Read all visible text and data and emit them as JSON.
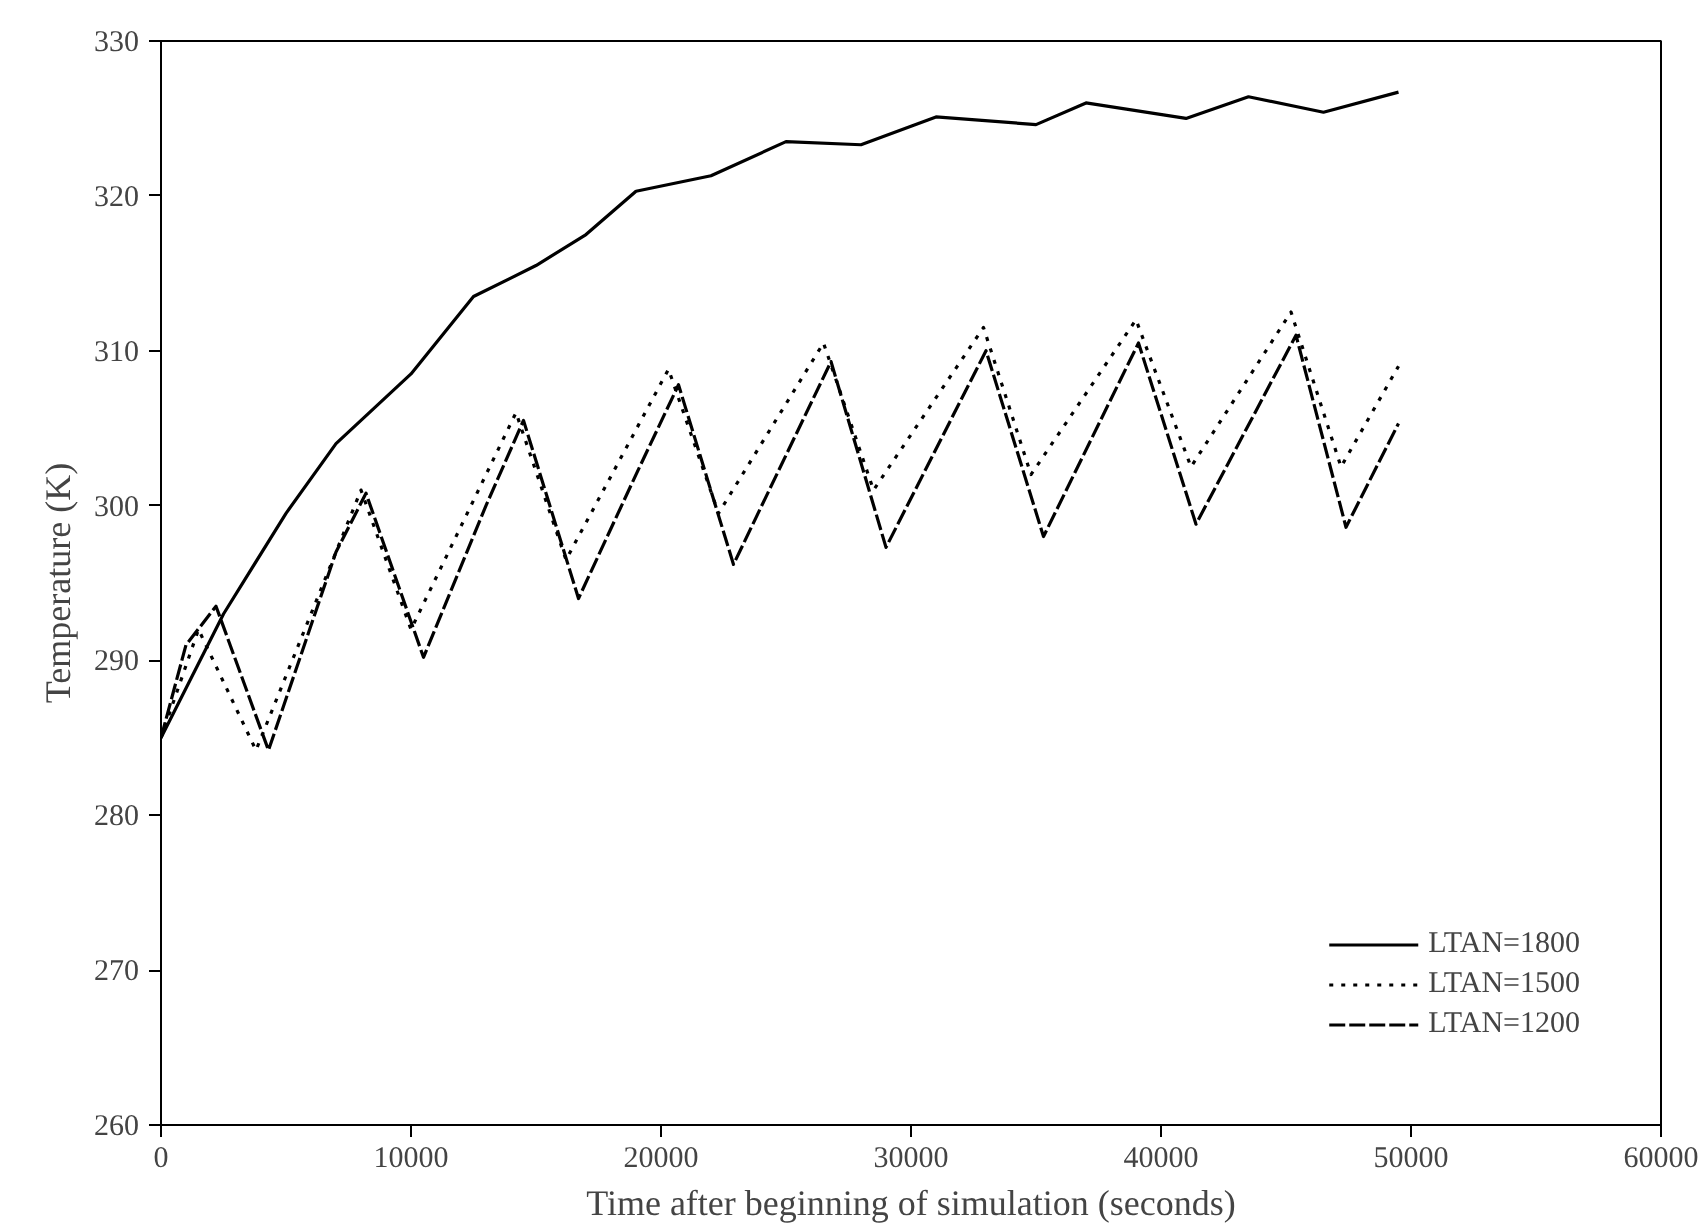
{
  "chart_data": {
    "type": "line",
    "xlabel": "Time after beginning of simulation (seconds)",
    "ylabel": "Temperature (K)",
    "xlim": [
      0,
      60000
    ],
    "ylim": [
      260,
      330
    ],
    "xticks": [
      0,
      10000,
      20000,
      30000,
      40000,
      50000,
      60000
    ],
    "yticks": [
      260,
      270,
      280,
      290,
      300,
      310,
      320,
      330
    ],
    "grid": false,
    "legend": "bottom right",
    "marker": "none",
    "series": [
      {
        "name": "LTAN=1800",
        "color": "#000000",
        "line_style": "solid",
        "x": [
          0,
          2500,
          5000,
          7000,
          10000,
          12500,
          15000,
          17000,
          19000,
          22000,
          25000,
          28000,
          31000,
          35000,
          37000,
          41000,
          43500,
          46500,
          49500
        ],
        "values": [
          285,
          293,
          299.5,
          304,
          308.5,
          313.5,
          315.5,
          317.5,
          320.3,
          321.3,
          323.5,
          323.3,
          325.1,
          324.6,
          326,
          325,
          326.4,
          325.4,
          326.7
        ]
      },
      {
        "name": "LTAN=1500",
        "color": "#000000",
        "line_style": "dotted",
        "x": [
          0,
          1500,
          3800,
          8000,
          10000,
          14200,
          16200,
          20300,
          22300,
          26500,
          28500,
          32900,
          34800,
          39000,
          41200,
          45200,
          47200,
          49500
        ],
        "values": [
          285,
          292,
          284.2,
          301,
          292,
          306,
          296.5,
          308.8,
          299.5,
          310.5,
          301,
          311.5,
          302,
          312,
          302.5,
          312.5,
          302.5,
          309
        ]
      },
      {
        "name": "LTAN=1200",
        "color": "#000000",
        "line_style": "dashed",
        "x": [
          0,
          1000,
          2200,
          4300,
          7000,
          8200,
          10500,
          13000,
          14500,
          16700,
          19000,
          20700,
          22900,
          26800,
          29000,
          33000,
          35300,
          39100,
          41400,
          45400,
          47400,
          49500
        ],
        "values": [
          285,
          291,
          293.5,
          284.2,
          297,
          300.8,
          290.2,
          300,
          305.5,
          294,
          302,
          307.8,
          296.2,
          309.3,
          297.3,
          310,
          298,
          310.5,
          298.8,
          311,
          298.6,
          305.3
        ]
      }
    ]
  }
}
